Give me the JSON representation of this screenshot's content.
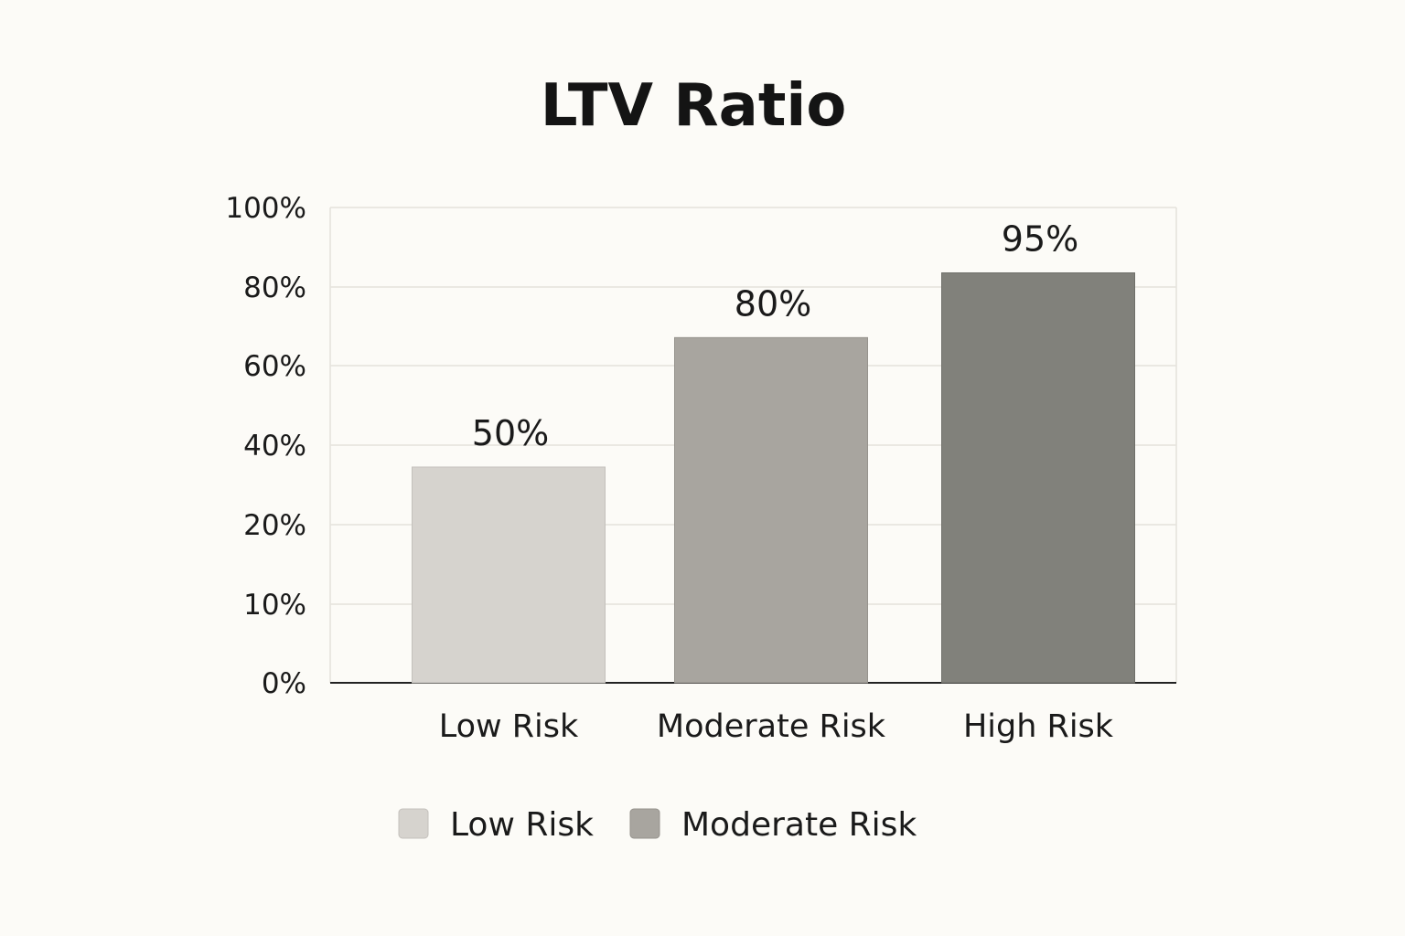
{
  "colors": {
    "background": "#fcfbf7",
    "low_risk": "#d6d3ce",
    "moderate_risk": "#a8a59f",
    "high_risk": "#81817b",
    "gridline": "#e4e2dc",
    "axis": "#222222"
  },
  "chart_data": {
    "type": "bar",
    "title": "LTV Ratio",
    "xlabel": "",
    "ylabel": "",
    "categories": [
      "Low Risk",
      "Moderate Risk",
      "High Risk"
    ],
    "values": [
      50,
      80,
      95
    ],
    "data_labels": [
      "50%",
      "80%",
      "95%"
    ],
    "y_ticks": [
      {
        "value": 0,
        "label": "0%"
      },
      {
        "value": 10,
        "label": "10%"
      },
      {
        "value": 20,
        "label": "20%"
      },
      {
        "value": 40,
        "label": "40%"
      },
      {
        "value": 60,
        "label": "60%"
      },
      {
        "value": 80,
        "label": "80%"
      },
      {
        "value": 100,
        "label": "100%"
      }
    ],
    "ylim": [
      0,
      100
    ],
    "grid": true,
    "legend_position": "bottom",
    "legend": [
      {
        "label": "Low Risk",
        "color": "#d6d3ce"
      },
      {
        "label": "Moderate Risk",
        "color": "#a8a59f"
      }
    ]
  }
}
